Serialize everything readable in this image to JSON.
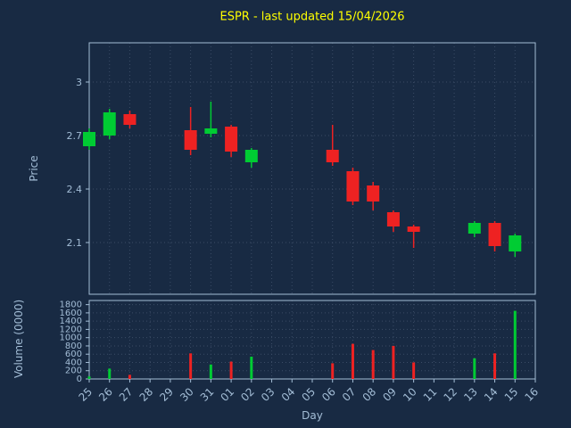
{
  "chart_data": {
    "type": "candlestick",
    "title": "ESPR - last updated 15/04/2026",
    "xlabel": "Day",
    "ylabel_price": "Price",
    "ylabel_volume": "Volume (0000)",
    "categories": [
      "25",
      "26",
      "27",
      "28",
      "29",
      "30",
      "31",
      "01",
      "02",
      "03",
      "04",
      "05",
      "06",
      "07",
      "08",
      "09",
      "10",
      "11",
      "12",
      "13",
      "14",
      "15",
      "16"
    ],
    "price_ylim": [
      1.81,
      3.22
    ],
    "volume_ylim": [
      0,
      1900
    ],
    "price_tick_values": [
      2.1,
      2.4,
      2.7,
      3.0
    ],
    "price_tick_labels": [
      "2.1",
      "2.4",
      "2.7",
      "3"
    ],
    "volume_tick_values": [
      0,
      200,
      400,
      600,
      800,
      1000,
      1200,
      1400,
      1600,
      1800
    ],
    "volume_tick_labels": [
      "0",
      "200",
      "400",
      "600",
      "800",
      "1000",
      "1200",
      "1400",
      "1600",
      "1800"
    ],
    "grid": true,
    "candles": [
      {
        "day": "25",
        "open": 2.64,
        "high": 2.74,
        "low": 2.62,
        "close": 2.72,
        "volume": 60
      },
      {
        "day": "26",
        "open": 2.7,
        "high": 2.85,
        "low": 2.68,
        "close": 2.83,
        "volume": 250
      },
      {
        "day": "27",
        "open": 2.82,
        "high": 2.84,
        "low": 2.74,
        "close": 2.76,
        "volume": 100
      },
      {
        "day": "30",
        "open": 2.73,
        "high": 2.86,
        "low": 2.59,
        "close": 2.62,
        "volume": 620
      },
      {
        "day": "31",
        "open": 2.71,
        "high": 2.89,
        "low": 2.69,
        "close": 2.74,
        "volume": 350
      },
      {
        "day": "01",
        "open": 2.75,
        "high": 2.76,
        "low": 2.58,
        "close": 2.61,
        "volume": 420
      },
      {
        "day": "02",
        "open": 2.55,
        "high": 2.63,
        "low": 2.52,
        "close": 2.62,
        "volume": 540
      },
      {
        "day": "06",
        "open": 2.62,
        "high": 2.76,
        "low": 2.53,
        "close": 2.55,
        "volume": 380
      },
      {
        "day": "07",
        "open": 2.5,
        "high": 2.52,
        "low": 2.31,
        "close": 2.33,
        "volume": 850
      },
      {
        "day": "08",
        "open": 2.42,
        "high": 2.44,
        "low": 2.28,
        "close": 2.33,
        "volume": 700
      },
      {
        "day": "09",
        "open": 2.27,
        "high": 2.28,
        "low": 2.16,
        "close": 2.19,
        "volume": 800
      },
      {
        "day": "10",
        "open": 2.19,
        "high": 2.2,
        "low": 2.07,
        "close": 2.16,
        "volume": 400
      },
      {
        "day": "13",
        "open": 2.15,
        "high": 2.22,
        "low": 2.13,
        "close": 2.21,
        "volume": 500
      },
      {
        "day": "14",
        "open": 2.21,
        "high": 2.22,
        "low": 2.05,
        "close": 2.08,
        "volume": 620
      },
      {
        "day": "15",
        "open": 2.05,
        "high": 2.15,
        "low": 2.02,
        "close": 2.14,
        "volume": 1650
      }
    ],
    "colors": {
      "background": "#182a43",
      "grid": "#3b4c66",
      "axis_text": "#a3bdd6",
      "title": "#ffff00",
      "up": "#00cc33",
      "down": "#ee2222"
    },
    "legend": "none"
  }
}
